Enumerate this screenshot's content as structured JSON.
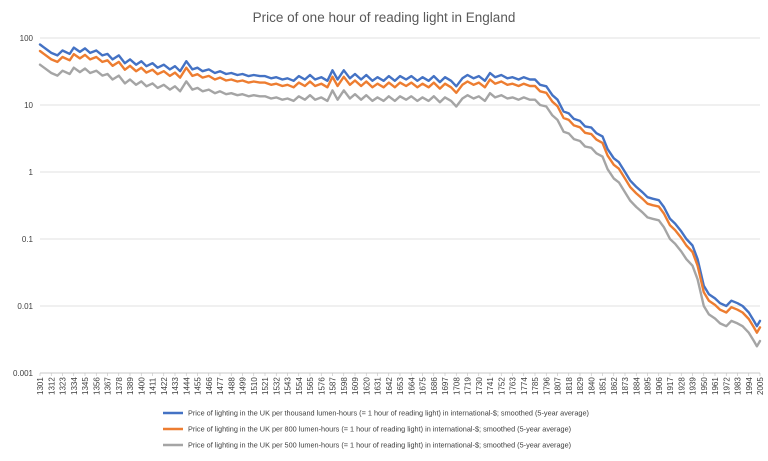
{
  "chart_data": {
    "type": "line",
    "title": "Price of one hour of reading light in England",
    "y_scale": "log",
    "ylim": [
      0.001,
      100
    ],
    "y_ticks": [
      "0.001",
      "0.01",
      "0.1",
      "1",
      "10",
      "100"
    ],
    "y_tick_values": [
      0.001,
      0.01,
      0.1,
      1,
      10,
      100
    ],
    "x_ticks": [
      "1301",
      "1312",
      "1323",
      "1334",
      "1345",
      "1356",
      "1367",
      "1378",
      "1389",
      "1400",
      "1411",
      "1422",
      "1433",
      "1444",
      "1455",
      "1466",
      "1477",
      "1488",
      "1499",
      "1510",
      "1521",
      "1532",
      "1543",
      "1554",
      "1565",
      "1576",
      "1587",
      "1598",
      "1609",
      "1620",
      "1631",
      "1642",
      "1653",
      "1664",
      "1675",
      "1686",
      "1697",
      "1708",
      "1719",
      "1730",
      "1741",
      "1752",
      "1763",
      "1774",
      "1785",
      "1796",
      "1807",
      "1818",
      "1829",
      "1840",
      "1851",
      "1862",
      "1873",
      "1884",
      "1895",
      "1906",
      "1917",
      "1928",
      "1939",
      "1950",
      "1961",
      "1972",
      "1983",
      "1994",
      "2005"
    ],
    "xlim": [
      1301,
      2005
    ],
    "grid": true,
    "legend_position": "bottom",
    "x": [
      1301,
      1305,
      1312,
      1318,
      1323,
      1330,
      1334,
      1340,
      1345,
      1350,
      1356,
      1362,
      1367,
      1372,
      1378,
      1384,
      1389,
      1395,
      1400,
      1405,
      1411,
      1416,
      1422,
      1428,
      1433,
      1438,
      1444,
      1450,
      1455,
      1460,
      1466,
      1472,
      1477,
      1483,
      1488,
      1494,
      1499,
      1505,
      1510,
      1516,
      1521,
      1527,
      1532,
      1538,
      1543,
      1549,
      1554,
      1560,
      1565,
      1570,
      1576,
      1582,
      1587,
      1592,
      1598,
      1604,
      1609,
      1615,
      1620,
      1626,
      1631,
      1637,
      1642,
      1648,
      1653,
      1659,
      1664,
      1670,
      1675,
      1681,
      1686,
      1692,
      1697,
      1703,
      1708,
      1714,
      1719,
      1725,
      1730,
      1736,
      1741,
      1746,
      1752,
      1758,
      1763,
      1769,
      1774,
      1780,
      1785,
      1790,
      1796,
      1802,
      1807,
      1813,
      1818,
      1823,
      1829,
      1834,
      1840,
      1845,
      1851,
      1856,
      1862,
      1867,
      1873,
      1878,
      1884,
      1890,
      1895,
      1900,
      1906,
      1911,
      1917,
      1922,
      1928,
      1933,
      1939,
      1944,
      1950,
      1955,
      1961,
      1966,
      1972,
      1977,
      1983,
      1988,
      1994,
      1999,
      2002,
      2005
    ],
    "series": [
      {
        "name": "Price of lighting in the UK per thousand lumen-hours (= 1 hour of reading light) in international-$; smoothed (5-year average)",
        "color": "#4472c4",
        "values": [
          80,
          72,
          60,
          55,
          65,
          58,
          72,
          62,
          70,
          60,
          65,
          55,
          58,
          48,
          55,
          42,
          48,
          40,
          45,
          38,
          42,
          36,
          40,
          34,
          38,
          32,
          45,
          34,
          36,
          32,
          34,
          30,
          32,
          29,
          30,
          28,
          29,
          27,
          28,
          27,
          27,
          25,
          26,
          24,
          25,
          23,
          27,
          24,
          28,
          24,
          26,
          23,
          33,
          24,
          33,
          25,
          29,
          24,
          28,
          23,
          26,
          23,
          27,
          23,
          27,
          24,
          27,
          23,
          26,
          23,
          27,
          22,
          26,
          23,
          19,
          25,
          28,
          25,
          27,
          23,
          30,
          26,
          28,
          25,
          26,
          24,
          26,
          24,
          24,
          20,
          19,
          14,
          12,
          8,
          7.5,
          6.2,
          5.8,
          4.8,
          4.6,
          3.8,
          3.4,
          2.2,
          1.6,
          1.4,
          1.0,
          0.75,
          0.6,
          0.5,
          0.42,
          0.4,
          0.38,
          0.3,
          0.2,
          0.17,
          0.13,
          0.1,
          0.08,
          0.05,
          0.02,
          0.015,
          0.013,
          0.011,
          0.01,
          0.012,
          0.011,
          0.01,
          0.008,
          0.006,
          0.005,
          0.006
        ]
      },
      {
        "name": "Price of lighting in the UK per 800 lumen-hours (= 1 hour of reading light) in international-$; smoothed (5-year average)",
        "color": "#ed7d31",
        "values": [
          64,
          57.6,
          48,
          44,
          52,
          46.4,
          57.6,
          49.6,
          56,
          48,
          52,
          44,
          46.4,
          38.4,
          44,
          33.6,
          38.4,
          32,
          36,
          30.4,
          33.6,
          28.8,
          32,
          27.2,
          30.4,
          25.6,
          36,
          27.2,
          28.8,
          25.6,
          27.2,
          24,
          25.6,
          23.2,
          24,
          22.4,
          23.2,
          21.6,
          22.4,
          21.6,
          21.6,
          20,
          20.8,
          19.2,
          20,
          18.4,
          21.6,
          19.2,
          22.4,
          19.2,
          20.8,
          18.4,
          26.4,
          19.2,
          26.4,
          20,
          23.2,
          19.2,
          22.4,
          18.4,
          20.8,
          18.4,
          21.6,
          18.4,
          21.6,
          19.2,
          21.6,
          18.4,
          20.8,
          18.4,
          21.6,
          17.6,
          20.8,
          18.4,
          15.2,
          20,
          22.4,
          20,
          21.6,
          18.4,
          24,
          20.8,
          22.4,
          20,
          20.8,
          19.2,
          20.8,
          19.2,
          19.2,
          16,
          15.2,
          11.2,
          9.6,
          6.4,
          6,
          4.96,
          4.64,
          3.84,
          3.68,
          3.04,
          2.72,
          1.76,
          1.28,
          1.12,
          0.8,
          0.6,
          0.48,
          0.4,
          0.336,
          0.32,
          0.304,
          0.24,
          0.16,
          0.136,
          0.104,
          0.08,
          0.064,
          0.04,
          0.016,
          0.012,
          0.0104,
          0.0088,
          0.008,
          0.0096,
          0.0088,
          0.008,
          0.0064,
          0.0048,
          0.004,
          0.0048
        ]
      },
      {
        "name": "Price of lighting in the UK per 500 lumen-hours (= 1 hour of reading light) in international-$; smoothed (5-year average)",
        "color": "#a5a5a5",
        "values": [
          40,
          36,
          30,
          27.5,
          32.5,
          29,
          36,
          31,
          35,
          30,
          32.5,
          27.5,
          29,
          24,
          27.5,
          21,
          24,
          20,
          22.5,
          19,
          21,
          18,
          20,
          17,
          19,
          16,
          22.5,
          17,
          18,
          16,
          17,
          15,
          16,
          14.5,
          15,
          14,
          14.5,
          13.5,
          14,
          13.5,
          13.5,
          12.5,
          13,
          12,
          12.5,
          11.5,
          13.5,
          12,
          14,
          12,
          13,
          11.5,
          16.5,
          12,
          16.5,
          12.5,
          14.5,
          12,
          14,
          11.5,
          13,
          11.5,
          13.5,
          11.5,
          13.5,
          12,
          13.5,
          11.5,
          13,
          11.5,
          13.5,
          11,
          13,
          11.5,
          9.5,
          12.5,
          14,
          12.5,
          13.5,
          11.5,
          15,
          13,
          14,
          12.5,
          13,
          12,
          13,
          12,
          12,
          10,
          9.5,
          7,
          6,
          4,
          3.75,
          3.1,
          2.9,
          2.4,
          2.3,
          1.9,
          1.7,
          1.1,
          0.8,
          0.7,
          0.5,
          0.375,
          0.3,
          0.25,
          0.21,
          0.2,
          0.19,
          0.15,
          0.1,
          0.085,
          0.065,
          0.05,
          0.04,
          0.025,
          0.01,
          0.0075,
          0.0065,
          0.0055,
          0.005,
          0.006,
          0.0055,
          0.005,
          0.004,
          0.003,
          0.0025,
          0.003
        ]
      }
    ]
  }
}
